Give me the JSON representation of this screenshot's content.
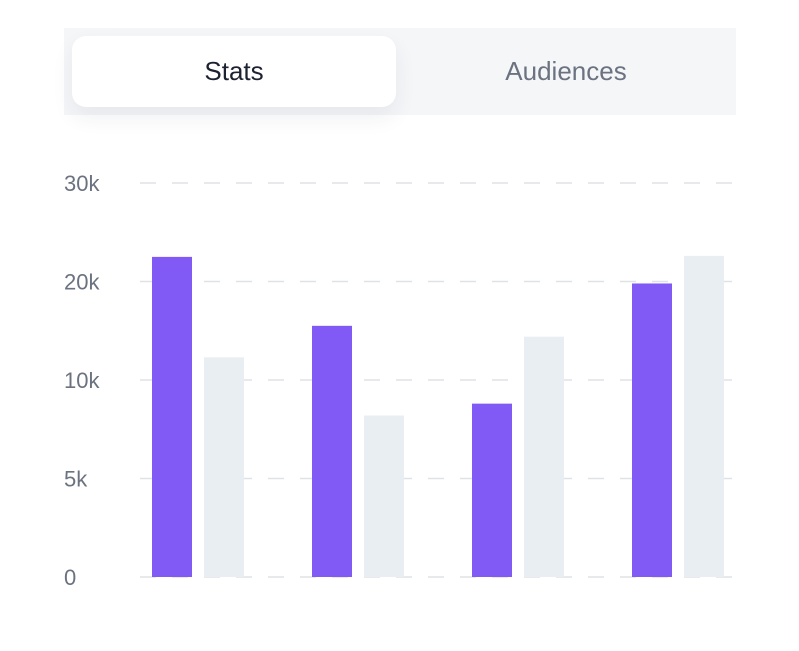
{
  "tabs": {
    "items": [
      {
        "label": "Stats",
        "active": true
      },
      {
        "label": "Audiences",
        "active": false
      }
    ]
  },
  "colors": {
    "series_primary": "#8159f4",
    "series_secondary": "#e9eef2",
    "grid": "#dfe2e6",
    "tick_text": "#6b7280"
  },
  "chart_data": {
    "type": "bar",
    "title": "",
    "xlabel": "",
    "ylabel": "",
    "categories": [
      "",
      "",
      "",
      ""
    ],
    "y_ticks": [
      {
        "value": 0,
        "label": "0"
      },
      {
        "value": 5000,
        "label": "5k"
      },
      {
        "value": 10000,
        "label": "10k"
      },
      {
        "value": 20000,
        "label": "20k"
      },
      {
        "value": 30000,
        "label": "30k"
      }
    ],
    "grid": true,
    "legend": "none",
    "series": [
      {
        "values": [
          22500,
          15500,
          8800,
          19800
        ]
      },
      {
        "values": [
          12300,
          8200,
          14400,
          22600
        ]
      }
    ]
  }
}
